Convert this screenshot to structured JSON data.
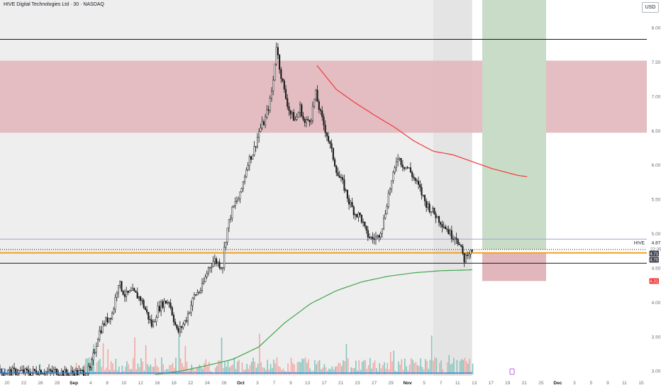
{
  "header": {
    "title": "HIVE Digital Technologies Ltd · 30 · NASDAQ",
    "currency": "USD"
  },
  "colors": {
    "background": "#ffffff",
    "shade": "#dadada",
    "resistance_zone": "#e1b7bb",
    "target_zone": "#c9dcc7",
    "stop_zone": "#e2b7bb",
    "red_ma": "#f03a3a",
    "green_ma": "#3ea64d",
    "candles": "#1b1b1b",
    "vol_up": "#86c5bd",
    "vol_down": "#f0a9a5",
    "support_line": "#f4a01d",
    "blue_line": "#2a7fde",
    "label_red": "#ef3b3b",
    "label_dark": "#434651"
  },
  "chart_data": {
    "type": "candlestick",
    "symbol": "HIVE",
    "interval": "30",
    "exchange": "NASDAQ",
    "y_axis": {
      "ticks": [
        "8.00",
        "7.50",
        "7.00",
        "6.50",
        "6.00",
        "5.50",
        "5.00",
        "4.50",
        "4.00",
        "3.50",
        "3.00"
      ],
      "range": [
        2.93,
        8.3
      ]
    },
    "x_axis": {
      "labels": [
        "20",
        "22",
        "26",
        "28",
        "Sep",
        "4",
        "8",
        "10",
        "12",
        "16",
        "18",
        "22",
        "24",
        "26",
        "Oct",
        "3",
        "7",
        "9",
        "13",
        "17",
        "21",
        "23",
        "27",
        "29",
        "Nov",
        "5",
        "7",
        "11",
        "13",
        "17",
        "19",
        "21",
        "25",
        "Dec",
        "3",
        "5",
        "9",
        "11",
        "15"
      ],
      "bold_labels": [
        "Sep",
        "Oct",
        "Nov",
        "Dec"
      ]
    },
    "price_path": [
      [
        0,
        2.98
      ],
      [
        0.03,
        2.99
      ],
      [
        0.055,
        2.98
      ],
      [
        0.07,
        3.01
      ],
      [
        0.085,
        2.98
      ],
      [
        0.1,
        3.0
      ],
      [
        0.115,
        2.97
      ],
      [
        0.13,
        2.97
      ],
      [
        0.15,
        2.98
      ],
      [
        0.16,
        3.02
      ],
      [
        0.175,
        3.55
      ],
      [
        0.185,
        3.7
      ],
      [
        0.2,
        3.85
      ],
      [
        0.21,
        4.3
      ],
      [
        0.222,
        4.1
      ],
      [
        0.235,
        4.15
      ],
      [
        0.25,
        4.05
      ],
      [
        0.27,
        3.65
      ],
      [
        0.28,
        3.9
      ],
      [
        0.29,
        4.0
      ],
      [
        0.3,
        4.02
      ],
      [
        0.315,
        3.55
      ],
      [
        0.33,
        3.75
      ],
      [
        0.345,
        4.1
      ],
      [
        0.358,
        4.2
      ],
      [
        0.37,
        4.5
      ],
      [
        0.38,
        4.62
      ],
      [
        0.39,
        4.55
      ],
      [
        0.395,
        4.52
      ],
      [
        0.398,
        4.78
      ],
      [
        0.403,
        5.05
      ],
      [
        0.41,
        5.3
      ],
      [
        0.418,
        5.45
      ],
      [
        0.426,
        5.55
      ],
      [
        0.43,
        5.7
      ],
      [
        0.44,
        6.05
      ],
      [
        0.45,
        6.2
      ],
      [
        0.46,
        6.5
      ],
      [
        0.47,
        6.65
      ],
      [
        0.48,
        6.95
      ],
      [
        0.486,
        7.3
      ],
      [
        0.49,
        7.78
      ],
      [
        0.495,
        7.48
      ],
      [
        0.505,
        7.05
      ],
      [
        0.515,
        6.75
      ],
      [
        0.525,
        6.65
      ],
      [
        0.533,
        6.85
      ],
      [
        0.54,
        6.6
      ],
      [
        0.552,
        6.7
      ],
      [
        0.56,
        7.05
      ],
      [
        0.57,
        6.7
      ],
      [
        0.58,
        6.45
      ],
      [
        0.59,
        6.15
      ],
      [
        0.6,
        5.85
      ],
      [
        0.61,
        5.7
      ],
      [
        0.62,
        5.45
      ],
      [
        0.63,
        5.3
      ],
      [
        0.64,
        5.25
      ],
      [
        0.65,
        5.0
      ],
      [
        0.66,
        4.92
      ],
      [
        0.67,
        4.95
      ],
      [
        0.68,
        5.15
      ],
      [
        0.69,
        5.6
      ],
      [
        0.7,
        5.9
      ],
      [
        0.705,
        6.15
      ],
      [
        0.715,
        6.0
      ],
      [
        0.725,
        5.95
      ],
      [
        0.735,
        5.8
      ],
      [
        0.745,
        5.65
      ],
      [
        0.755,
        5.45
      ],
      [
        0.765,
        5.35
      ],
      [
        0.775,
        5.25
      ],
      [
        0.785,
        5.15
      ],
      [
        0.795,
        5.05
      ],
      [
        0.8,
        4.98
      ],
      [
        0.81,
        4.96
      ],
      [
        0.82,
        4.72
      ],
      [
        0.825,
        4.6
      ],
      [
        0.83,
        4.75
      ],
      [
        0.835,
        4.72
      ],
      [
        0.838,
        4.77
      ]
    ],
    "candles": {
      "count": 300,
      "x_range": [
        0.0,
        0.73
      ]
    },
    "volume": {
      "bars": 300,
      "x_range": [
        0.0,
        0.73
      ],
      "max_fraction": 0.4
    },
    "moving_averages": [
      {
        "color": "#f03a3a",
        "points": [
          [
            0.49,
            7.45
          ],
          [
            0.52,
            7.1
          ],
          [
            0.55,
            6.9
          ],
          [
            0.58,
            6.72
          ],
          [
            0.61,
            6.55
          ],
          [
            0.64,
            6.35
          ],
          [
            0.67,
            6.2
          ],
          [
            0.7,
            6.15
          ],
          [
            0.73,
            6.05
          ],
          [
            0.76,
            5.95
          ],
          [
            0.8,
            5.85
          ],
          [
            0.815,
            5.83
          ]
        ]
      },
      {
        "color": "#3ea64d",
        "points": [
          [
            0.24,
            2.95
          ],
          [
            0.28,
            3.0
          ],
          [
            0.32,
            3.08
          ],
          [
            0.36,
            3.17
          ],
          [
            0.4,
            3.35
          ],
          [
            0.44,
            3.7
          ],
          [
            0.48,
            3.98
          ],
          [
            0.52,
            4.17
          ],
          [
            0.56,
            4.3
          ],
          [
            0.6,
            4.38
          ],
          [
            0.64,
            4.43
          ],
          [
            0.68,
            4.46
          ],
          [
            0.72,
            4.47
          ],
          [
            0.73,
            4.475
          ]
        ]
      }
    ],
    "zones": {
      "resistance": [
        6.47,
        7.52
      ],
      "target_box": {
        "price_range": [
          4.77,
          8.31
        ]
      },
      "stop_box": {
        "price_range": [
          4.31,
          4.72
        ]
      }
    },
    "levels": [
      {
        "price": 7.83,
        "style": "solid",
        "color": "#131722"
      },
      {
        "price": 4.72,
        "style": "solid",
        "color": "#f4a01d"
      },
      {
        "price": 4.57,
        "style": "solid",
        "color": "#131722"
      },
      {
        "price": 4.92,
        "style": "solid",
        "color": "#9aa6d8"
      },
      {
        "price": 4.77,
        "style": "dotted",
        "color": "#131722"
      }
    ],
    "price_labels": [
      {
        "name": "symbol",
        "text": "HIVE",
        "price": 4.87
      },
      {
        "name": "last",
        "text": "4.87",
        "price": 4.87
      },
      {
        "name": "countdown",
        "text": "22:39",
        "price": 4.78
      },
      {
        "name": "level-a",
        "text": "4.71",
        "price": 4.71
      },
      {
        "name": "level-b",
        "text": "4.70",
        "price": 4.62
      },
      {
        "name": "stop",
        "text": "4.31",
        "price": 4.31
      }
    ]
  }
}
